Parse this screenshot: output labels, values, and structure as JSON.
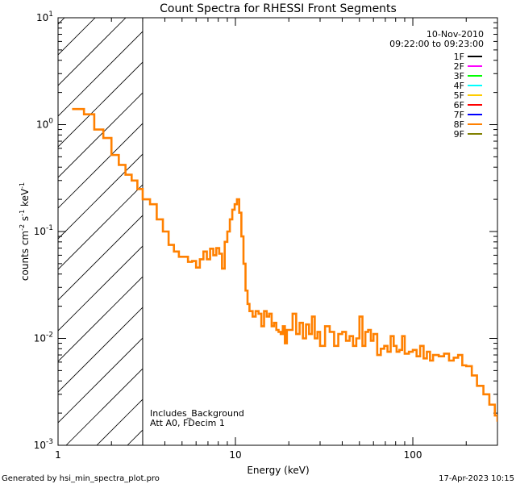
{
  "chart_data": {
    "type": "line",
    "title": "Count Spectra for RHESSI Front Segments",
    "xlabel": "Energy (keV)",
    "ylabel_parts": [
      "counts cm",
      "-2",
      " s",
      "-1",
      " keV",
      "-1"
    ],
    "xscale": "log",
    "yscale": "log",
    "xlim": [
      1,
      300
    ],
    "ylim": [
      0.001,
      10
    ],
    "x_ticks": [
      {
        "value": 1,
        "label": "1"
      },
      {
        "value": 10,
        "label": "10"
      },
      {
        "value": 100,
        "label": "100"
      }
    ],
    "y_ticks": [
      {
        "value": 10,
        "base": "10",
        "exp": "1"
      },
      {
        "value": 1,
        "base": "10",
        "exp": "0"
      },
      {
        "value": 0.1,
        "base": "10",
        "exp": "-1"
      },
      {
        "value": 0.01,
        "base": "10",
        "exp": "-2"
      },
      {
        "value": 0.001,
        "base": "10",
        "exp": "-3"
      }
    ],
    "date": "10-Nov-2010",
    "time_range": "09:22:00 to 09:23:00",
    "legend": [
      {
        "name": "1F",
        "color": "#000000"
      },
      {
        "name": "2F",
        "color": "#ff00ff"
      },
      {
        "name": "3F",
        "color": "#00ff00"
      },
      {
        "name": "4F",
        "color": "#00ffff"
      },
      {
        "name": "5F",
        "color": "#ffcc00"
      },
      {
        "name": "6F",
        "color": "#ff0000"
      },
      {
        "name": "7F",
        "color": "#0000ff"
      },
      {
        "name": "8F",
        "color": "#ff8000"
      },
      {
        "name": "9F",
        "color": "#808000"
      }
    ],
    "hatched_region": {
      "xmin": 1,
      "xmax": 3
    },
    "annotations": [
      "Includes_Background",
      "Att A0, FDecim 1"
    ],
    "series": [
      {
        "name": "8F",
        "color": "#ff8000",
        "style": "step",
        "x": [
          1.2,
          1.4,
          1.6,
          1.8,
          2.0,
          2.2,
          2.4,
          2.6,
          2.8,
          3.0,
          3.3,
          3.6,
          3.9,
          4.2,
          4.5,
          4.8,
          5.1,
          5.4,
          5.7,
          6.0,
          6.3,
          6.6,
          6.9,
          7.2,
          7.5,
          7.8,
          8.1,
          8.4,
          8.7,
          9.0,
          9.3,
          9.6,
          9.9,
          10.2,
          10.5,
          10.8,
          11.1,
          11.4,
          11.7,
          12.0,
          12.5,
          13.0,
          13.5,
          14.0,
          14.5,
          15.0,
          15.5,
          16.0,
          16.5,
          17.0,
          17.5,
          18.0,
          18.5,
          19.0,
          19.5,
          20.0,
          21,
          22,
          23,
          24,
          25,
          26,
          27,
          28,
          29,
          30,
          32,
          34,
          36,
          38,
          40,
          42,
          44,
          46,
          48,
          50,
          52,
          54,
          56,
          58,
          60,
          63,
          66,
          69,
          72,
          75,
          78,
          81,
          84,
          87,
          90,
          95,
          100,
          105,
          110,
          115,
          120,
          125,
          130,
          140,
          150,
          160,
          170,
          180,
          190,
          200,
          215,
          230,
          250,
          270,
          290,
          300
        ],
        "values": [
          1.4,
          1.25,
          0.9,
          0.75,
          0.52,
          0.42,
          0.34,
          0.3,
          0.25,
          0.2,
          0.18,
          0.13,
          0.1,
          0.075,
          0.065,
          0.058,
          0.058,
          0.052,
          0.053,
          0.046,
          0.055,
          0.065,
          0.055,
          0.069,
          0.06,
          0.07,
          0.062,
          0.045,
          0.08,
          0.1,
          0.13,
          0.16,
          0.18,
          0.2,
          0.15,
          0.09,
          0.05,
          0.028,
          0.021,
          0.018,
          0.016,
          0.018,
          0.017,
          0.013,
          0.018,
          0.016,
          0.017,
          0.013,
          0.014,
          0.012,
          0.0115,
          0.011,
          0.013,
          0.009,
          0.012,
          0.012,
          0.017,
          0.011,
          0.014,
          0.01,
          0.0135,
          0.011,
          0.016,
          0.01,
          0.0115,
          0.0085,
          0.013,
          0.0115,
          0.0085,
          0.011,
          0.0115,
          0.0095,
          0.0105,
          0.0085,
          0.01,
          0.016,
          0.0085,
          0.0115,
          0.012,
          0.0095,
          0.011,
          0.007,
          0.008,
          0.0085,
          0.0075,
          0.0105,
          0.0085,
          0.0075,
          0.0078,
          0.0105,
          0.0072,
          0.0075,
          0.0078,
          0.0068,
          0.0085,
          0.0065,
          0.0075,
          0.0062,
          0.007,
          0.0068,
          0.0072,
          0.0062,
          0.0066,
          0.007,
          0.0056,
          0.0055,
          0.0045,
          0.0036,
          0.003,
          0.0024,
          0.0019,
          0.0017
        ]
      }
    ]
  },
  "footer": {
    "generated_by": "Generated by hsi_min_spectra_plot.pro",
    "timestamp": "17-Apr-2023 10:15"
  }
}
